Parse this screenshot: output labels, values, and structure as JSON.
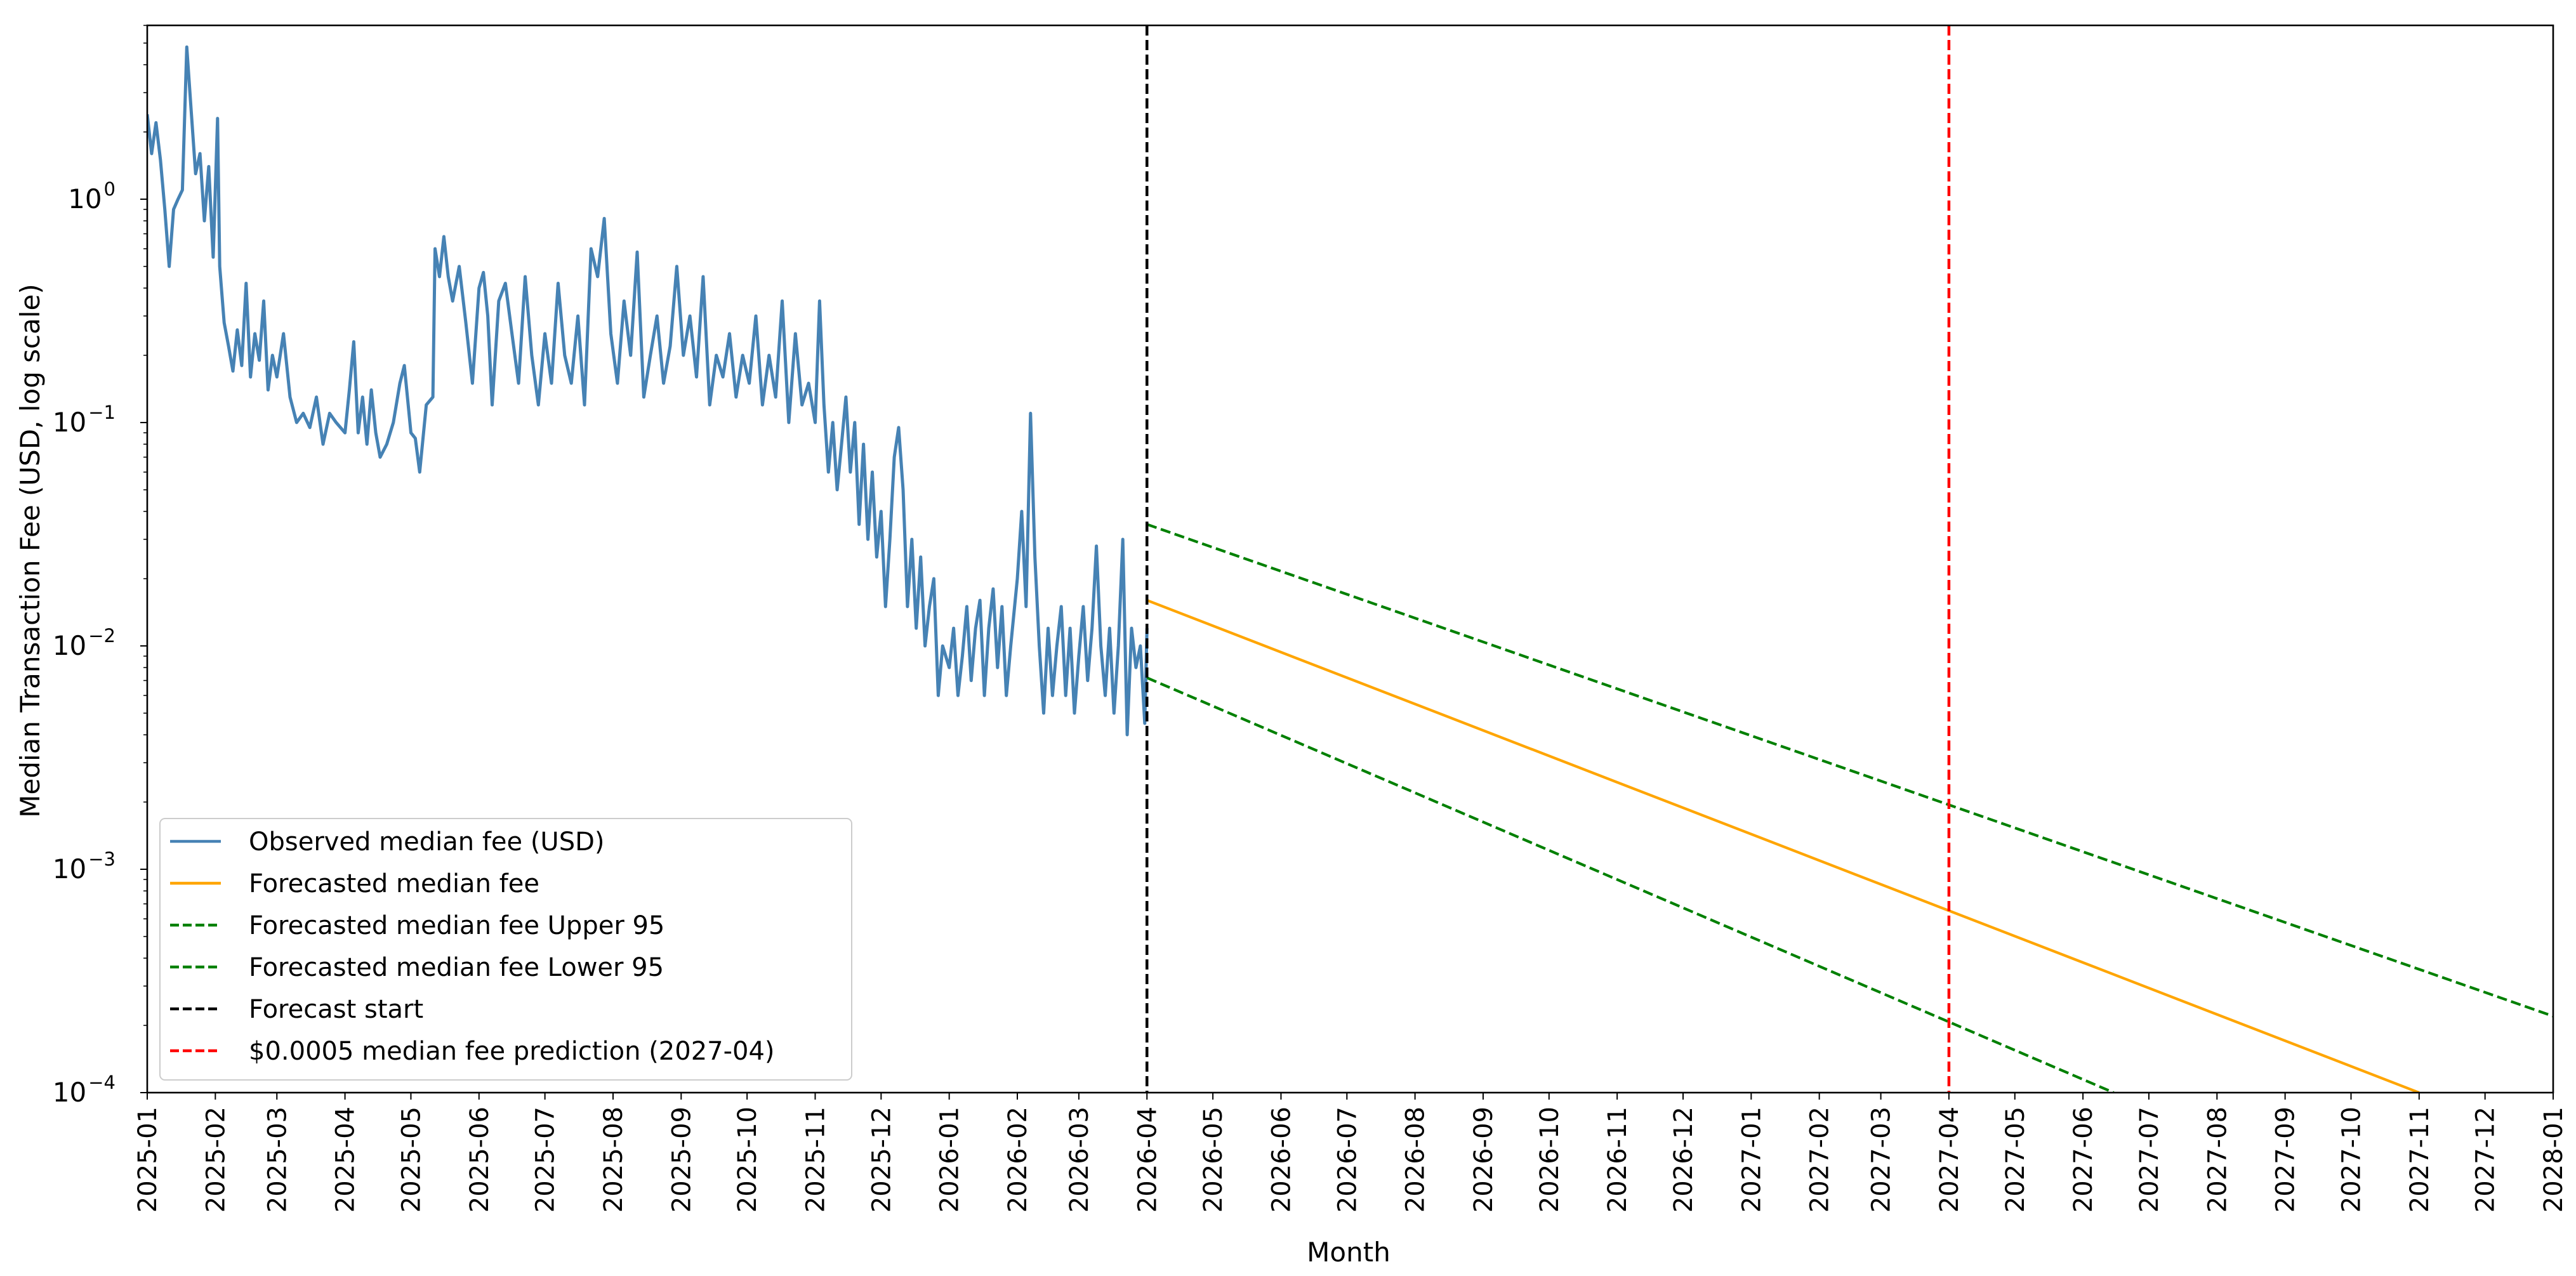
{
  "chart_data": {
    "type": "line",
    "title": "",
    "xlabel": "Month",
    "ylabel": "Median Transaction Fee (USD, log scale)",
    "yscale": "log",
    "xlim": [
      "2025-01-01",
      "2028-01-01"
    ],
    "ylim": [
      0.0001,
      6.0
    ],
    "grid": false,
    "legend_position": "lower-left",
    "x_tick_labels": [
      "2025-01",
      "2025-02",
      "2025-03",
      "2025-04",
      "2025-05",
      "2025-06",
      "2025-07",
      "2025-08",
      "2025-09",
      "2025-10",
      "2025-11",
      "2025-12",
      "2026-01",
      "2026-02",
      "2026-03",
      "2026-04",
      "2026-05",
      "2026-06",
      "2026-07",
      "2026-08",
      "2026-09",
      "2026-10",
      "2026-11",
      "2026-12",
      "2027-01",
      "2027-02",
      "2027-03",
      "2027-04",
      "2027-05",
      "2027-06",
      "2027-07",
      "2027-08",
      "2027-09",
      "2027-10",
      "2027-11",
      "2027-12",
      "2028-01"
    ],
    "y_ticks": [
      {
        "value": 1,
        "mantissa": "10",
        "exponent": "0"
      },
      {
        "value": 0.1,
        "mantissa": "10",
        "exponent": "−1"
      },
      {
        "value": 0.01,
        "mantissa": "10",
        "exponent": "−2"
      },
      {
        "value": 0.001,
        "mantissa": "10",
        "exponent": "−3"
      },
      {
        "value": 0.0001,
        "mantissa": "10",
        "exponent": "−4"
      }
    ],
    "series": [
      {
        "name": "Observed median fee (USD)",
        "color": "#4682b4",
        "style": "solid",
        "points": [
          [
            "2025-01-01",
            2.4
          ],
          [
            "2025-01-03",
            1.6
          ],
          [
            "2025-01-05",
            2.2
          ],
          [
            "2025-01-07",
            1.5
          ],
          [
            "2025-01-09",
            0.9
          ],
          [
            "2025-01-11",
            0.5
          ],
          [
            "2025-01-13",
            0.9
          ],
          [
            "2025-01-15",
            1.0
          ],
          [
            "2025-01-17",
            1.1
          ],
          [
            "2025-01-19",
            4.8
          ],
          [
            "2025-01-21",
            2.5
          ],
          [
            "2025-01-23",
            1.3
          ],
          [
            "2025-01-25",
            1.6
          ],
          [
            "2025-01-27",
            0.8
          ],
          [
            "2025-01-29",
            1.4
          ],
          [
            "2025-01-31",
            0.55
          ],
          [
            "2025-02-02",
            2.3
          ],
          [
            "2025-02-03",
            0.5
          ],
          [
            "2025-02-05",
            0.28
          ],
          [
            "2025-02-07",
            0.22
          ],
          [
            "2025-02-09",
            0.17
          ],
          [
            "2025-02-11",
            0.26
          ],
          [
            "2025-02-13",
            0.18
          ],
          [
            "2025-02-15",
            0.42
          ],
          [
            "2025-02-17",
            0.16
          ],
          [
            "2025-02-19",
            0.25
          ],
          [
            "2025-02-21",
            0.19
          ],
          [
            "2025-02-23",
            0.35
          ],
          [
            "2025-02-25",
            0.14
          ],
          [
            "2025-02-27",
            0.2
          ],
          [
            "2025-03-01",
            0.16
          ],
          [
            "2025-03-04",
            0.25
          ],
          [
            "2025-03-07",
            0.13
          ],
          [
            "2025-03-10",
            0.1
          ],
          [
            "2025-03-13",
            0.11
          ],
          [
            "2025-03-16",
            0.095
          ],
          [
            "2025-03-19",
            0.13
          ],
          [
            "2025-03-22",
            0.08
          ],
          [
            "2025-03-25",
            0.11
          ],
          [
            "2025-03-28",
            0.1
          ],
          [
            "2025-04-01",
            0.09
          ],
          [
            "2025-04-03",
            0.14
          ],
          [
            "2025-04-05",
            0.23
          ],
          [
            "2025-04-07",
            0.09
          ],
          [
            "2025-04-09",
            0.13
          ],
          [
            "2025-04-11",
            0.08
          ],
          [
            "2025-04-13",
            0.14
          ],
          [
            "2025-04-15",
            0.09
          ],
          [
            "2025-04-17",
            0.07
          ],
          [
            "2025-04-20",
            0.08
          ],
          [
            "2025-04-23",
            0.1
          ],
          [
            "2025-04-26",
            0.15
          ],
          [
            "2025-04-28",
            0.18
          ],
          [
            "2025-05-01",
            0.09
          ],
          [
            "2025-05-03",
            0.085
          ],
          [
            "2025-05-05",
            0.06
          ],
          [
            "2025-05-08",
            0.12
          ],
          [
            "2025-05-11",
            0.13
          ],
          [
            "2025-05-12",
            0.6
          ],
          [
            "2025-05-14",
            0.45
          ],
          [
            "2025-05-16",
            0.68
          ],
          [
            "2025-05-18",
            0.45
          ],
          [
            "2025-05-20",
            0.35
          ],
          [
            "2025-05-23",
            0.5
          ],
          [
            "2025-05-26",
            0.28
          ],
          [
            "2025-05-29",
            0.15
          ],
          [
            "2025-06-01",
            0.4
          ],
          [
            "2025-06-03",
            0.47
          ],
          [
            "2025-06-05",
            0.3
          ],
          [
            "2025-06-07",
            0.12
          ],
          [
            "2025-06-10",
            0.35
          ],
          [
            "2025-06-13",
            0.42
          ],
          [
            "2025-06-16",
            0.25
          ],
          [
            "2025-06-19",
            0.15
          ],
          [
            "2025-06-22",
            0.45
          ],
          [
            "2025-06-25",
            0.2
          ],
          [
            "2025-06-28",
            0.12
          ],
          [
            "2025-07-01",
            0.25
          ],
          [
            "2025-07-04",
            0.15
          ],
          [
            "2025-07-07",
            0.42
          ],
          [
            "2025-07-10",
            0.2
          ],
          [
            "2025-07-13",
            0.15
          ],
          [
            "2025-07-16",
            0.3
          ],
          [
            "2025-07-19",
            0.12
          ],
          [
            "2025-07-22",
            0.6
          ],
          [
            "2025-07-25",
            0.45
          ],
          [
            "2025-07-28",
            0.82
          ],
          [
            "2025-07-31",
            0.25
          ],
          [
            "2025-08-03",
            0.15
          ],
          [
            "2025-08-06",
            0.35
          ],
          [
            "2025-08-09",
            0.2
          ],
          [
            "2025-08-12",
            0.58
          ],
          [
            "2025-08-15",
            0.13
          ],
          [
            "2025-08-18",
            0.2
          ],
          [
            "2025-08-21",
            0.3
          ],
          [
            "2025-08-24",
            0.15
          ],
          [
            "2025-08-27",
            0.22
          ],
          [
            "2025-08-30",
            0.5
          ],
          [
            "2025-09-02",
            0.2
          ],
          [
            "2025-09-05",
            0.3
          ],
          [
            "2025-09-08",
            0.16
          ],
          [
            "2025-09-11",
            0.45
          ],
          [
            "2025-09-14",
            0.12
          ],
          [
            "2025-09-17",
            0.2
          ],
          [
            "2025-09-20",
            0.16
          ],
          [
            "2025-09-23",
            0.25
          ],
          [
            "2025-09-26",
            0.13
          ],
          [
            "2025-09-29",
            0.2
          ],
          [
            "2025-10-02",
            0.15
          ],
          [
            "2025-10-05",
            0.3
          ],
          [
            "2025-10-08",
            0.12
          ],
          [
            "2025-10-11",
            0.2
          ],
          [
            "2025-10-14",
            0.13
          ],
          [
            "2025-10-17",
            0.35
          ],
          [
            "2025-10-20",
            0.1
          ],
          [
            "2025-10-23",
            0.25
          ],
          [
            "2025-10-26",
            0.12
          ],
          [
            "2025-10-29",
            0.15
          ],
          [
            "2025-11-01",
            0.1
          ],
          [
            "2025-11-03",
            0.35
          ],
          [
            "2025-11-05",
            0.12
          ],
          [
            "2025-11-07",
            0.06
          ],
          [
            "2025-11-09",
            0.1
          ],
          [
            "2025-11-11",
            0.05
          ],
          [
            "2025-11-13",
            0.08
          ],
          [
            "2025-11-15",
            0.13
          ],
          [
            "2025-11-17",
            0.06
          ],
          [
            "2025-11-19",
            0.1
          ],
          [
            "2025-11-21",
            0.035
          ],
          [
            "2025-11-23",
            0.08
          ],
          [
            "2025-11-25",
            0.03
          ],
          [
            "2025-11-27",
            0.06
          ],
          [
            "2025-11-29",
            0.025
          ],
          [
            "2025-12-01",
            0.04
          ],
          [
            "2025-12-03",
            0.015
          ],
          [
            "2025-12-05",
            0.03
          ],
          [
            "2025-12-07",
            0.07
          ],
          [
            "2025-12-09",
            0.095
          ],
          [
            "2025-12-11",
            0.05
          ],
          [
            "2025-12-13",
            0.015
          ],
          [
            "2025-12-15",
            0.03
          ],
          [
            "2025-12-17",
            0.012
          ],
          [
            "2025-12-19",
            0.025
          ],
          [
            "2025-12-21",
            0.01
          ],
          [
            "2025-12-23",
            0.015
          ],
          [
            "2025-12-25",
            0.02
          ],
          [
            "2025-12-27",
            0.006
          ],
          [
            "2025-12-29",
            0.01
          ],
          [
            "2026-01-01",
            0.008
          ],
          [
            "2026-01-03",
            0.012
          ],
          [
            "2026-01-05",
            0.006
          ],
          [
            "2026-01-07",
            0.009
          ],
          [
            "2026-01-09",
            0.015
          ],
          [
            "2026-01-11",
            0.007
          ],
          [
            "2026-01-13",
            0.012
          ],
          [
            "2026-01-15",
            0.016
          ],
          [
            "2026-01-17",
            0.006
          ],
          [
            "2026-01-19",
            0.012
          ],
          [
            "2026-01-21",
            0.018
          ],
          [
            "2026-01-23",
            0.008
          ],
          [
            "2026-01-25",
            0.015
          ],
          [
            "2026-01-27",
            0.006
          ],
          [
            "2026-01-29",
            0.01
          ],
          [
            "2026-02-01",
            0.02
          ],
          [
            "2026-02-03",
            0.04
          ],
          [
            "2026-02-05",
            0.015
          ],
          [
            "2026-02-07",
            0.11
          ],
          [
            "2026-02-09",
            0.025
          ],
          [
            "2026-02-11",
            0.01
          ],
          [
            "2026-02-13",
            0.005
          ],
          [
            "2026-02-15",
            0.012
          ],
          [
            "2026-02-17",
            0.006
          ],
          [
            "2026-02-19",
            0.01
          ],
          [
            "2026-02-21",
            0.015
          ],
          [
            "2026-02-23",
            0.006
          ],
          [
            "2026-02-25",
            0.012
          ],
          [
            "2026-02-27",
            0.005
          ],
          [
            "2026-03-01",
            0.009
          ],
          [
            "2026-03-03",
            0.015
          ],
          [
            "2026-03-05",
            0.007
          ],
          [
            "2026-03-07",
            0.012
          ],
          [
            "2026-03-09",
            0.028
          ],
          [
            "2026-03-11",
            0.01
          ],
          [
            "2026-03-13",
            0.006
          ],
          [
            "2026-03-15",
            0.012
          ],
          [
            "2026-03-17",
            0.005
          ],
          [
            "2026-03-19",
            0.01
          ],
          [
            "2026-03-21",
            0.03
          ],
          [
            "2026-03-23",
            0.004
          ],
          [
            "2026-03-25",
            0.012
          ],
          [
            "2026-03-27",
            0.008
          ],
          [
            "2026-03-29",
            0.01
          ],
          [
            "2026-03-31",
            0.0045
          ],
          [
            "2026-04-01",
            0.012
          ]
        ]
      },
      {
        "name": "Forecasted median fee",
        "color": "#ffa500",
        "style": "solid",
        "points": [
          [
            "2026-04-01",
            0.016
          ],
          [
            "2027-11-01",
            0.0001
          ]
        ]
      },
      {
        "name": "Forecasted median fee Upper 95",
        "color": "#008000",
        "style": "dashed",
        "points": [
          [
            "2026-04-01",
            0.035
          ],
          [
            "2028-01-01",
            0.00022
          ]
        ]
      },
      {
        "name": "Forecasted median fee Lower 95",
        "color": "#008000",
        "style": "dashed",
        "points": [
          [
            "2026-04-01",
            0.0072
          ],
          [
            "2027-06-15",
            0.0001
          ]
        ]
      }
    ],
    "vlines": [
      {
        "name": "Forecast start",
        "x": "2026-04-01",
        "color": "#000000",
        "style": "dashed"
      },
      {
        "name": "$0.0005 median fee prediction (2027-04)",
        "x": "2027-04-01",
        "color": "#ff0000",
        "style": "dashed"
      }
    ],
    "legend": [
      {
        "label": "Observed median fee (USD)",
        "color": "#4682b4",
        "style": "solid"
      },
      {
        "label": "Forecasted median fee",
        "color": "#ffa500",
        "style": "solid"
      },
      {
        "label": "Forecasted median fee Upper 95",
        "color": "#008000",
        "style": "dashed"
      },
      {
        "label": "Forecasted median fee Lower 95",
        "color": "#008000",
        "style": "dashed"
      },
      {
        "label": "Forecast start",
        "color": "#000000",
        "style": "dashed"
      },
      {
        "label": "$0.0005 median fee prediction (2027-04)",
        "color": "#ff0000",
        "style": "dashed"
      }
    ]
  }
}
